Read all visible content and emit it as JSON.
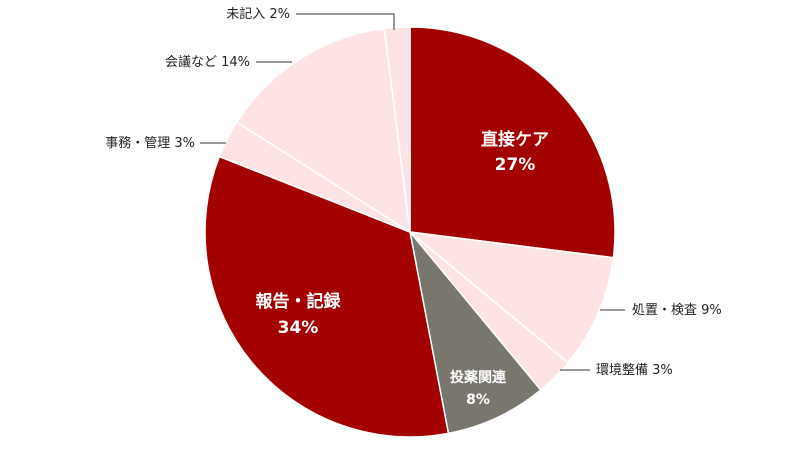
{
  "chart_data": {
    "type": "pie",
    "categories": [
      "直接ケア",
      "処置・検査",
      "環境整備",
      "投薬関連",
      "報告・記録",
      "事務・管理",
      "会議など",
      "未記入"
    ],
    "values": [
      27,
      9,
      3,
      8,
      34,
      3,
      14,
      2
    ],
    "value_labels": [
      "27%",
      "9%",
      "3%",
      "8%",
      "34%",
      "3%",
      "14%",
      "2%"
    ],
    "colors": [
      "#a30000",
      "#fde3e3",
      "#fde3e3",
      "#79766d",
      "#a30000",
      "#fde3e3",
      "#fde3e3",
      "#fde3e3"
    ]
  }
}
